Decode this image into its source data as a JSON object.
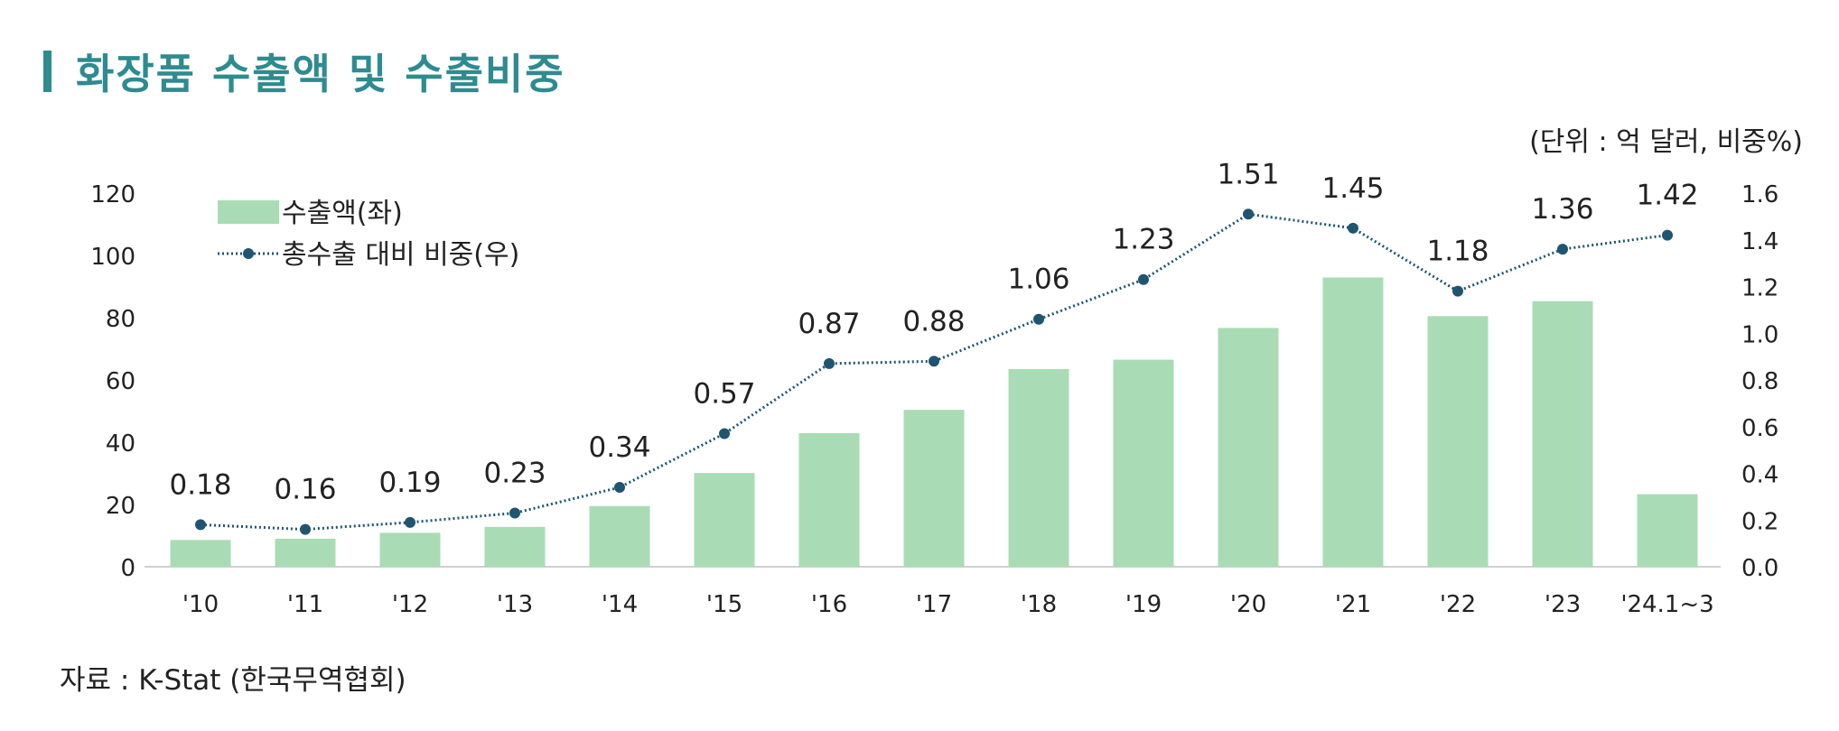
{
  "title": "화장품 수출액 및 수출비중",
  "unit_note": "(단위 : 억 달러, 비중%)",
  "source": "자료 : K-Stat (한국무역협회)",
  "colors": {
    "bar": "#a9dcb4",
    "line": "#1f5570",
    "title": "#2e8b8f"
  },
  "chart_data": {
    "type": "bar+line",
    "categories": [
      "'10",
      "'11",
      "'12",
      "'13",
      "'14",
      "'15",
      "'16",
      "'17",
      "'18",
      "'19",
      "'20",
      "'21",
      "'22",
      "'23",
      "'24.1~3"
    ],
    "series": [
      {
        "name": "수출액(좌)",
        "type": "bar",
        "axis": "left",
        "values": [
          8.6,
          9.0,
          10.9,
          12.8,
          19.5,
          30.1,
          42.9,
          50.4,
          63.5,
          66.5,
          76.7,
          92.9,
          80.5,
          85.3,
          23.3
        ]
      },
      {
        "name": "총수출 대비 비중(우)",
        "type": "line",
        "axis": "right",
        "style": "dotted-with-markers",
        "values": [
          0.18,
          0.16,
          0.19,
          0.23,
          0.34,
          0.57,
          0.87,
          0.88,
          1.06,
          1.23,
          1.51,
          1.45,
          1.18,
          1.36,
          1.42
        ],
        "labels": [
          "0.18",
          "0.16",
          "0.19",
          "0.23",
          "0.34",
          "0.57",
          "0.87",
          "0.88",
          "1.06",
          "1.23",
          "1.51",
          "1.45",
          "1.18",
          "1.36",
          "1.42"
        ]
      }
    ],
    "y_left": {
      "range": [
        0,
        120
      ],
      "ticks": [
        "0",
        "20",
        "40",
        "60",
        "80",
        "100",
        "120"
      ]
    },
    "y_right": {
      "range": [
        0,
        1.6
      ],
      "ticks": [
        "0.0",
        "0.2",
        "0.4",
        "0.6",
        "0.8",
        "1.0",
        "1.2",
        "1.4",
        "1.6"
      ]
    },
    "legend_placement": "top-left",
    "grid": false
  }
}
